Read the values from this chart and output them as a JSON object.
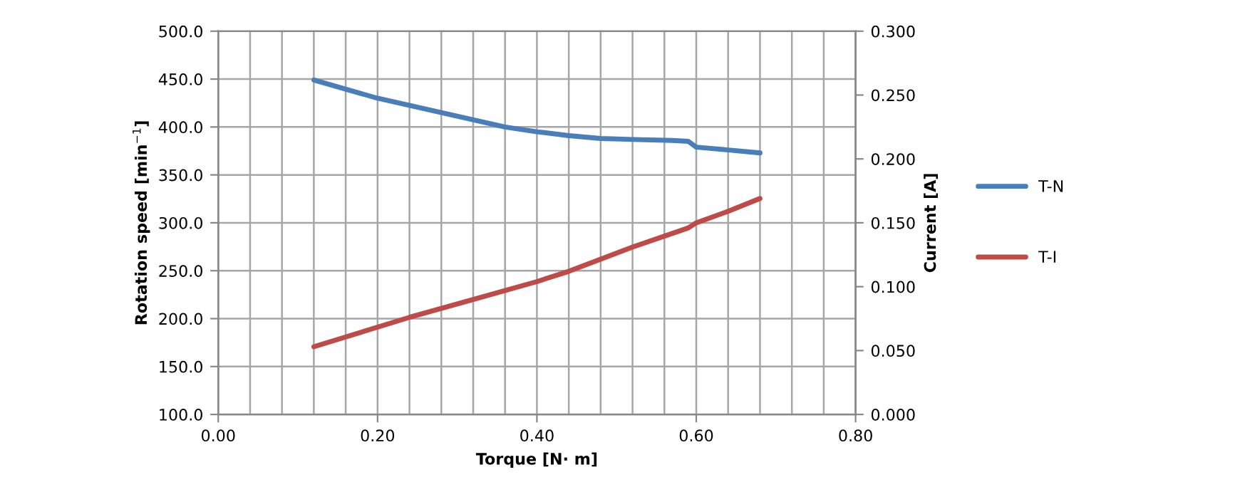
{
  "chart_data": {
    "type": "line",
    "xlabel": "Torque [N· m]",
    "ylabel": "Rotation speed [min$^{−1}$]",
    "y2label": "Current [A]",
    "xlim": [
      0,
      0.8
    ],
    "xticks": [
      {
        "value": 0,
        "label": "0.00"
      },
      {
        "value": 0.2,
        "label": "0.20"
      },
      {
        "value": 0.4,
        "label": "0.40"
      },
      {
        "value": 0.6,
        "label": "0.60"
      },
      {
        "value": 0.8,
        "label": "0.80"
      }
    ],
    "ylim": [
      100,
      500
    ],
    "yticks": [
      {
        "value": 100,
        "label": "100.0"
      },
      {
        "value": 150,
        "label": "150.0"
      },
      {
        "value": 200,
        "label": "200.0"
      },
      {
        "value": 250,
        "label": "250.0"
      },
      {
        "value": 300,
        "label": "300.0"
      },
      {
        "value": 350,
        "label": "350.0"
      },
      {
        "value": 400,
        "label": "400.0"
      },
      {
        "value": 450,
        "label": "450.0"
      },
      {
        "value": 500,
        "label": "500.0"
      }
    ],
    "y2lim": [
      0,
      0.3
    ],
    "y2ticks": [
      {
        "value": 0,
        "label": "0.000"
      },
      {
        "value": 0.05,
        "label": "0.050"
      },
      {
        "value": 0.1,
        "label": "0.100"
      },
      {
        "value": 0.15,
        "label": "0.150"
      },
      {
        "value": 0.2,
        "label": "0.200"
      },
      {
        "value": 0.25,
        "label": "0.250"
      },
      {
        "value": 0.3,
        "label": "0.300"
      }
    ],
    "grid": true,
    "legend": "right",
    "marker": "none",
    "line_style": "solid",
    "series": [
      {
        "name": "T-N",
        "color": "#4a7ebb",
        "x": [
          0.12,
          0.2,
          0.28,
          0.36,
          0.4,
          0.44,
          0.48,
          0.52,
          0.57,
          0.59,
          0.6,
          0.64,
          0.68
        ],
        "values": [
          449,
          430,
          415,
          400,
          395,
          391,
          388,
          387,
          386,
          385,
          379,
          376,
          373
        ]
      },
      {
        "name": "T-I",
        "color": "#be4b48",
        "axis": "y2",
        "x": [
          0.12,
          0.24,
          0.32,
          0.4,
          0.44,
          0.52,
          0.59,
          0.6,
          0.64,
          0.68
        ],
        "values": [
          0.053,
          0.076,
          0.09,
          0.104,
          0.112,
          0.131,
          0.146,
          0.15,
          0.159,
          0.169
        ]
      }
    ]
  }
}
